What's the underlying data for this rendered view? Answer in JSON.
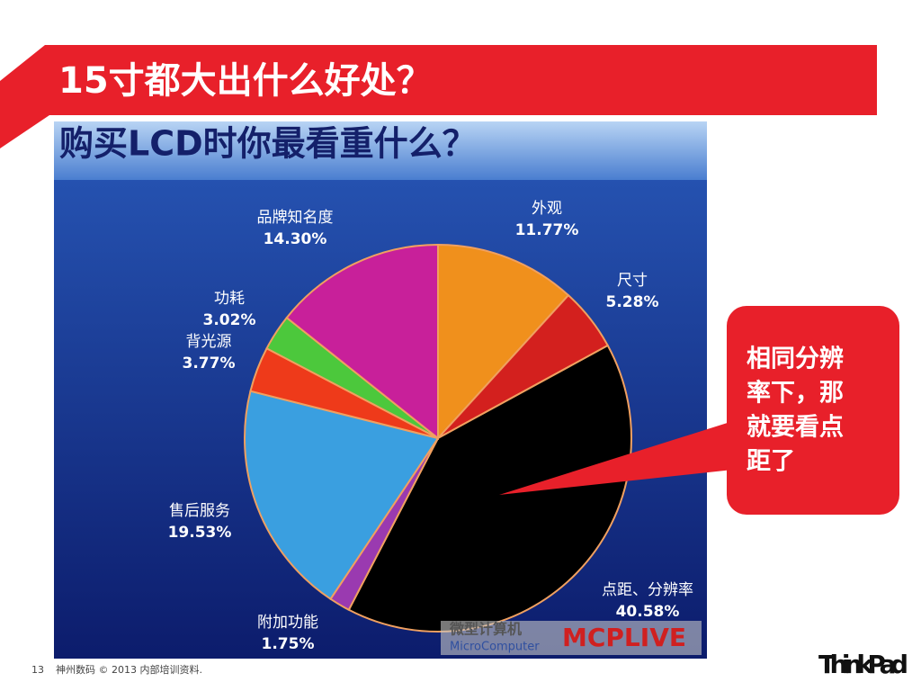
{
  "slide": {
    "title": "15寸都大出什么好处？",
    "callout": [
      "相同分辨",
      "率下，那",
      "就要看点",
      "距了"
    ],
    "page_number": "13",
    "footer": "神州数码 © 2013 内部培训资料.",
    "logo": "ThinkPad",
    "watermark": [
      "微型计算机",
      "MicroComputer",
      "MCPLIVE"
    ]
  },
  "chart_data": {
    "type": "pie",
    "title": "购买LCD时你最看重什么？",
    "categories": [
      "外观",
      "尺寸",
      "点距、分辨率",
      "附加功能",
      "售后服务",
      "背光源",
      "功耗",
      "品牌知名度"
    ],
    "values": [
      11.77,
      5.28,
      40.58,
      1.75,
      19.53,
      3.77,
      3.02,
      14.3
    ],
    "value_labels": [
      "11.77%",
      "5.28%",
      "40.58%",
      "1.75%",
      "19.53%",
      "3.77%",
      "3.02%",
      "14.30%"
    ],
    "colors": [
      "#f0901c",
      "#d3201e",
      "#000000",
      "#9a3ab0",
      "#3a9fe0",
      "#ee3a1a",
      "#4cc83c",
      "#c8209a"
    ]
  }
}
